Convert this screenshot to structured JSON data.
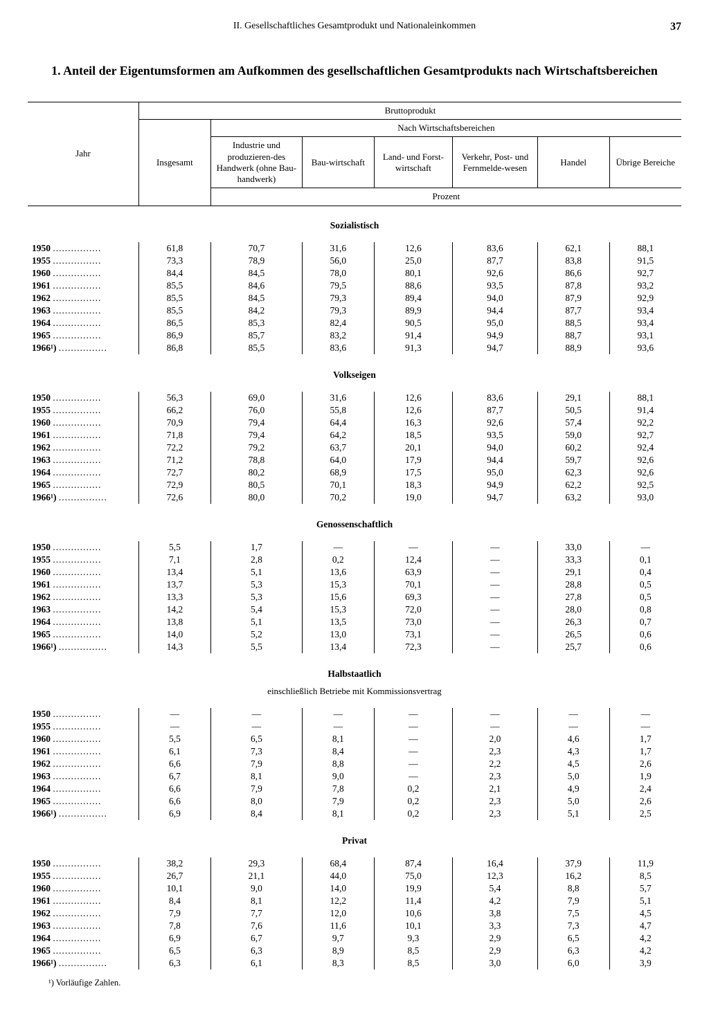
{
  "header": {
    "running_title": "II. Gesellschaftliches Gesamtprodukt und Nationaleinkommen",
    "page_number": "37"
  },
  "title": "1. Anteil der Eigentumsformen am Aufkommen des gesellschaftlichen Gesamtprodukts nach Wirtschaftsbereichen",
  "columns": {
    "year": "Jahr",
    "total": "Insgesamt",
    "super1": "Bruttoprodukt",
    "super2": "Nach Wirtschaftsbereichen",
    "c1": "Industrie und produzieren-des Handwerk (ohne Bau-handwerk)",
    "c2": "Bau-wirtschaft",
    "c3": "Land- und Forst-wirtschaft",
    "c4": "Verkehr, Post- und Fernmelde-wesen",
    "c5": "Handel",
    "c6": "Übrige Bereiche",
    "unit": "Prozent"
  },
  "years": [
    "1950",
    "1955",
    "1960",
    "1961",
    "1962",
    "1963",
    "1964",
    "1965",
    "1966¹)"
  ],
  "sections": [
    {
      "title": "Sozialistisch",
      "subtitle": null,
      "rows": [
        [
          "61,8",
          "70,7",
          "31,6",
          "12,6",
          "83,6",
          "62,1",
          "88,1"
        ],
        [
          "73,3",
          "78,9",
          "56,0",
          "25,0",
          "87,7",
          "83,8",
          "91,5"
        ],
        [
          "84,4",
          "84,5",
          "78,0",
          "80,1",
          "92,6",
          "86,6",
          "92,7"
        ],
        [
          "85,5",
          "84,6",
          "79,5",
          "88,6",
          "93,5",
          "87,8",
          "93,2"
        ],
        [
          "85,5",
          "84,5",
          "79,3",
          "89,4",
          "94,0",
          "87,9",
          "92,9"
        ],
        [
          "85,5",
          "84,2",
          "79,3",
          "89,9",
          "94,4",
          "87,7",
          "93,4"
        ],
        [
          "86,5",
          "85,3",
          "82,4",
          "90,5",
          "95,0",
          "88,5",
          "93,4"
        ],
        [
          "86,9",
          "85,7",
          "83,2",
          "91,4",
          "94,9",
          "88,7",
          "93,1"
        ],
        [
          "86,8",
          "85,5",
          "83,6",
          "91,3",
          "94,7",
          "88,9",
          "93,6"
        ]
      ]
    },
    {
      "title": "Volkseigen",
      "subtitle": null,
      "rows": [
        [
          "56,3",
          "69,0",
          "31,6",
          "12,6",
          "83,6",
          "29,1",
          "88,1"
        ],
        [
          "66,2",
          "76,0",
          "55,8",
          "12,6",
          "87,7",
          "50,5",
          "91,4"
        ],
        [
          "70,9",
          "79,4",
          "64,4",
          "16,3",
          "92,6",
          "57,4",
          "92,2"
        ],
        [
          "71,8",
          "79,4",
          "64,2",
          "18,5",
          "93,5",
          "59,0",
          "92,7"
        ],
        [
          "72,2",
          "79,2",
          "63,7",
          "20,1",
          "94,0",
          "60,2",
          "92,4"
        ],
        [
          "71,2",
          "78,8",
          "64,0",
          "17,9",
          "94,4",
          "59,7",
          "92,6"
        ],
        [
          "72,7",
          "80,2",
          "68,9",
          "17,5",
          "95,0",
          "62,3",
          "92,6"
        ],
        [
          "72,9",
          "80,5",
          "70,1",
          "18,3",
          "94,9",
          "62,2",
          "92,5"
        ],
        [
          "72,6",
          "80,0",
          "70,2",
          "19,0",
          "94,7",
          "63,2",
          "93,0"
        ]
      ]
    },
    {
      "title": "Genossenschaftlich",
      "subtitle": null,
      "rows": [
        [
          "5,5",
          "1,7",
          "—",
          "—",
          "—",
          "33,0",
          "—"
        ],
        [
          "7,1",
          "2,8",
          "0,2",
          "12,4",
          "—",
          "33,3",
          "0,1"
        ],
        [
          "13,4",
          "5,1",
          "13,6",
          "63,9",
          "—",
          "29,1",
          "0,4"
        ],
        [
          "13,7",
          "5,3",
          "15,3",
          "70,1",
          "—",
          "28,8",
          "0,5"
        ],
        [
          "13,3",
          "5,3",
          "15,6",
          "69,3",
          "—",
          "27,8",
          "0,5"
        ],
        [
          "14,2",
          "5,4",
          "15,3",
          "72,0",
          "—",
          "28,0",
          "0,8"
        ],
        [
          "13,8",
          "5,1",
          "13,5",
          "73,0",
          "—",
          "26,3",
          "0,7"
        ],
        [
          "14,0",
          "5,2",
          "13,0",
          "73,1",
          "—",
          "26,5",
          "0,6"
        ],
        [
          "14,3",
          "5,5",
          "13,4",
          "72,3",
          "—",
          "25,7",
          "0,6"
        ]
      ]
    },
    {
      "title": "Halbstaatlich",
      "subtitle": "einschließlich Betriebe mit Kommissionsvertrag",
      "rows": [
        [
          "—",
          "—",
          "—",
          "—",
          "—",
          "—",
          "—"
        ],
        [
          "—",
          "—",
          "—",
          "—",
          "—",
          "—",
          "—"
        ],
        [
          "5,5",
          "6,5",
          "8,1",
          "—",
          "2,0",
          "4,6",
          "1,7"
        ],
        [
          "6,1",
          "7,3",
          "8,4",
          "—",
          "2,3",
          "4,3",
          "1,7"
        ],
        [
          "6,6",
          "7,9",
          "8,8",
          "—",
          "2,2",
          "4,5",
          "2,6"
        ],
        [
          "6,7",
          "8,1",
          "9,0",
          "—",
          "2,3",
          "5,0",
          "1,9"
        ],
        [
          "6,6",
          "7,9",
          "7,8",
          "0,2",
          "2,1",
          "4,9",
          "2,4"
        ],
        [
          "6,6",
          "8,0",
          "7,9",
          "0,2",
          "2,3",
          "5,0",
          "2,6"
        ],
        [
          "6,9",
          "8,4",
          "8,1",
          "0,2",
          "2,3",
          "5,1",
          "2,5"
        ]
      ]
    },
    {
      "title": "Privat",
      "subtitle": null,
      "rows": [
        [
          "38,2",
          "29,3",
          "68,4",
          "87,4",
          "16,4",
          "37,9",
          "11,9"
        ],
        [
          "26,7",
          "21,1",
          "44,0",
          "75,0",
          "12,3",
          "16,2",
          "8,5"
        ],
        [
          "10,1",
          "9,0",
          "14,0",
          "19,9",
          "5,4",
          "8,8",
          "5,7"
        ],
        [
          "8,4",
          "8,1",
          "12,2",
          "11,4",
          "4,2",
          "7,9",
          "5,1"
        ],
        [
          "7,9",
          "7,7",
          "12,0",
          "10,6",
          "3,8",
          "7,5",
          "4,5"
        ],
        [
          "7,8",
          "7,6",
          "11,6",
          "10,1",
          "3,3",
          "7,3",
          "4,7"
        ],
        [
          "6,9",
          "6,7",
          "9,7",
          "9,3",
          "2,9",
          "6,5",
          "4,2"
        ],
        [
          "6,5",
          "6,3",
          "8,9",
          "8,5",
          "2,9",
          "6,3",
          "4,2"
        ],
        [
          "6,3",
          "6,1",
          "8,3",
          "8,5",
          "3,0",
          "6,0",
          "3,9"
        ]
      ]
    }
  ],
  "footnote": "¹) Vorläufige Zahlen."
}
